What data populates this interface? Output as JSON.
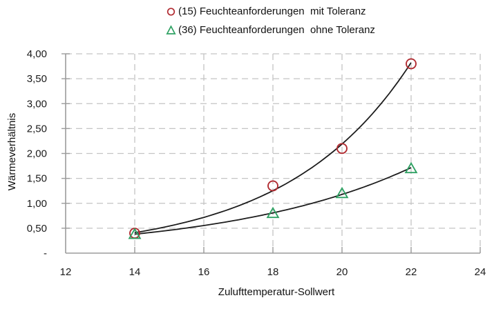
{
  "colors": {
    "series_red": "#b12b31",
    "series_green": "#2fa163",
    "trend_line": "#1c1c1c",
    "gridline": "#c4c4c4",
    "axis": "#9b9b9b",
    "text": "#1a1a1a"
  },
  "legend": {
    "items": [
      {
        "symbol": "circle-outline",
        "color": "#b12b31",
        "label": "(15) Feuchteanforderungen  mit Toleranz"
      },
      {
        "symbol": "triangle-outline",
        "color": "#2fa163",
        "label": "(36) Feuchteanforderungen  ohne Toleranz"
      }
    ]
  },
  "chart_data": {
    "type": "scatter",
    "x": [
      14,
      18,
      20,
      22
    ],
    "series": [
      {
        "name": "(15) Feuchteanforderungen mit Toleranz",
        "marker": "circle",
        "color": "#b12b31",
        "values": [
          0.4,
          1.35,
          2.1,
          3.8
        ],
        "trendline": "exponential"
      },
      {
        "name": "(36) Feuchteanforderungen ohne Toleranz",
        "marker": "triangle",
        "color": "#2fa163",
        "values": [
          0.38,
          0.8,
          1.2,
          1.7
        ],
        "trendline": "exponential"
      }
    ],
    "title": "",
    "xlabel": "Zulufttemperatur-Sollwert",
    "ylabel": "Wärmeverhältnis",
    "xlim": [
      12,
      24
    ],
    "ylim": [
      0,
      4
    ],
    "x_ticks": [
      12,
      14,
      16,
      18,
      20,
      22,
      24
    ],
    "x_tick_labels": [
      "12",
      "14",
      "16",
      "18",
      "20",
      "22",
      "24"
    ],
    "y_ticks": [
      0,
      0.5,
      1,
      1.5,
      2,
      2.5,
      3,
      3.5,
      4
    ],
    "y_tick_labels": [
      "-",
      "0,50",
      "1,00",
      "1,50",
      "2,00",
      "2,50",
      "3,00",
      "3,50",
      "4,00"
    ],
    "grid": true,
    "grid_style": "dashed",
    "legend_position": "top-center",
    "trend_line_color": "#1c1c1c"
  }
}
